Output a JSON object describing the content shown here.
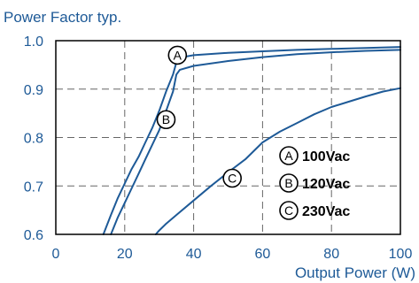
{
  "chart_data": {
    "type": "line",
    "title": "Power Factor typ.",
    "xlabel": "Output Power (W)",
    "ylabel": "",
    "xlim": [
      0,
      100
    ],
    "ylim": [
      0.6,
      1.0
    ],
    "x_ticks": [
      "0",
      "20",
      "40",
      "60",
      "80",
      "100"
    ],
    "y_ticks": [
      "0.6",
      "0.7",
      "0.8",
      "0.9",
      "1.0"
    ],
    "grid": true,
    "series": [
      {
        "name": "100Vac",
        "marker": "A",
        "x": [
          13.8,
          16,
          18,
          20,
          22,
          24,
          26,
          28,
          30,
          32,
          34,
          35,
          36,
          40,
          50,
          60,
          70,
          80,
          90,
          100
        ],
        "y": [
          0.6,
          0.64,
          0.675,
          0.705,
          0.735,
          0.76,
          0.79,
          0.82,
          0.855,
          0.895,
          0.93,
          0.955,
          0.965,
          0.97,
          0.975,
          0.978,
          0.981,
          0.983,
          0.985,
          0.987
        ]
      },
      {
        "name": "120Vac",
        "marker": "B",
        "x": [
          16,
          18,
          20,
          22,
          24,
          26,
          28,
          30,
          32,
          34,
          35,
          36,
          40,
          50,
          60,
          70,
          80,
          90,
          100
        ],
        "y": [
          0.6,
          0.635,
          0.665,
          0.695,
          0.725,
          0.755,
          0.785,
          0.815,
          0.855,
          0.895,
          0.93,
          0.94,
          0.948,
          0.958,
          0.966,
          0.972,
          0.976,
          0.979,
          0.981
        ]
      },
      {
        "name": "230Vac",
        "marker": "C",
        "x": [
          29,
          30,
          32,
          35,
          40,
          45,
          50,
          55,
          60,
          65,
          70,
          75,
          80,
          85,
          90,
          95,
          100
        ],
        "y": [
          0.6,
          0.608,
          0.622,
          0.64,
          0.67,
          0.7,
          0.728,
          0.755,
          0.79,
          0.812,
          0.83,
          0.848,
          0.863,
          0.874,
          0.885,
          0.895,
          0.902
        ]
      }
    ],
    "curve_markers": [
      {
        "label": "A",
        "x": 35.3,
        "y": 0.97
      },
      {
        "label": "B",
        "x": 32,
        "y": 0.837
      },
      {
        "label": "C",
        "x": 51.2,
        "y": 0.716
      }
    ],
    "legend": [
      {
        "marker": "A",
        "label": "100Vac"
      },
      {
        "marker": "B",
        "label": "120Vac"
      },
      {
        "marker": "C",
        "label": "230Vac"
      }
    ],
    "legend_placement": "lower-right",
    "colors": {
      "curve": "#1e5a97",
      "text": "#1e5a97",
      "frame": "#000000",
      "grid": "#666666"
    }
  }
}
